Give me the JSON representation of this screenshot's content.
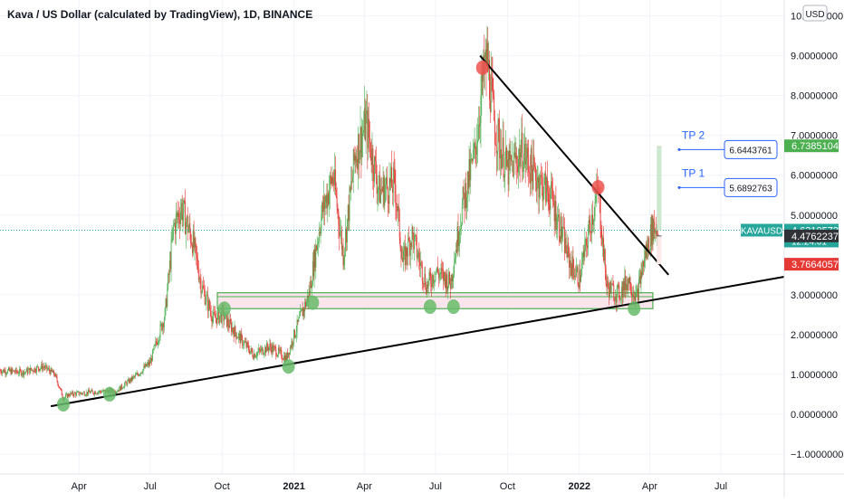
{
  "header": {
    "title": "Kava / US Dollar (calculated by TradingView), 1D, BINANCE",
    "currency": "USD"
  },
  "colors": {
    "up": "#26a69a",
    "down": "#ef5350",
    "candle_up": "#4caf50",
    "candle_down": "#e53935",
    "support_zone_stroke": "#4caf50",
    "support_zone_fill": "#fce4ec",
    "marker_green": "#66bb6a",
    "marker_red": "#ef5350",
    "trendline": "#000000",
    "tp_line": "#2962ff",
    "label_green": "#4caf50",
    "label_teal": "#26a69a",
    "label_dark": "#2f3236",
    "label_red": "#e53935",
    "target_box": "#c8e6c9"
  },
  "chart_data": {
    "type": "candlestick",
    "symbol": "KAVAUSD",
    "interval": "1D",
    "exchange": "BINANCE",
    "yaxis": {
      "ticks": [
        "10.0000000",
        "9.0000000",
        "8.0000000",
        "7.0000000",
        "6.0000000",
        "5.0000000",
        "3.0000000",
        "2.0000000",
        "1.0000000",
        "0.0000000",
        "−1.0000000"
      ],
      "tick_values": [
        10,
        9,
        8,
        7,
        6,
        5,
        3,
        2,
        1,
        0,
        -1
      ],
      "range": [
        -1.5,
        10.4
      ]
    },
    "xaxis": {
      "ticks": [
        "Apr",
        "Jul",
        "Oct",
        "2021",
        "Apr",
        "Jul",
        "Oct",
        "2022",
        "Apr",
        "Jul"
      ],
      "tick_dates": [
        "2020-04-01",
        "2020-07-01",
        "2020-10-01",
        "2021-01-01",
        "2021-04-01",
        "2021-07-01",
        "2021-10-01",
        "2022-01-01",
        "2022-04-01",
        "2022-07-01"
      ],
      "bold_ticks": [
        "2021",
        "2022"
      ],
      "range": [
        "2019-12-22",
        "2022-09-20"
      ]
    },
    "price_path": [
      [
        "2019-12-22",
        1.1
      ],
      [
        "2020-01-20",
        1.05
      ],
      [
        "2020-02-15",
        1.2
      ],
      [
        "2020-03-01",
        1.0
      ],
      [
        "2020-03-12",
        0.4
      ],
      [
        "2020-03-20",
        0.5
      ],
      [
        "2020-04-15",
        0.55
      ],
      [
        "2020-05-20",
        0.6
      ],
      [
        "2020-06-15",
        1.0
      ],
      [
        "2020-07-01",
        1.3
      ],
      [
        "2020-07-20",
        2.5
      ],
      [
        "2020-07-31",
        4.7
      ],
      [
        "2020-08-10",
        5.2
      ],
      [
        "2020-08-25",
        4.3
      ],
      [
        "2020-09-05",
        3.2
      ],
      [
        "2020-09-20",
        2.4
      ],
      [
        "2020-10-01",
        2.5
      ],
      [
        "2020-10-20",
        2.0
      ],
      [
        "2020-11-10",
        1.5
      ],
      [
        "2020-12-01",
        1.7
      ],
      [
        "2020-12-22",
        1.4
      ],
      [
        "2021-01-05",
        2.2
      ],
      [
        "2021-01-20",
        3.0
      ],
      [
        "2021-02-05",
        5.0
      ],
      [
        "2021-02-20",
        6.0
      ],
      [
        "2021-03-05",
        4.0
      ],
      [
        "2021-03-20",
        6.5
      ],
      [
        "2021-04-03",
        7.3
      ],
      [
        "2021-04-20",
        5.6
      ],
      [
        "2021-05-10",
        5.8
      ],
      [
        "2021-05-20",
        3.8
      ],
      [
        "2021-06-01",
        4.5
      ],
      [
        "2021-06-20",
        3.2
      ],
      [
        "2021-07-01",
        3.6
      ],
      [
        "2021-07-20",
        3.3
      ],
      [
        "2021-08-05",
        5.3
      ],
      [
        "2021-08-20",
        6.5
      ],
      [
        "2021-08-30",
        8.3
      ],
      [
        "2021-09-05",
        8.9
      ],
      [
        "2021-09-15",
        7.2
      ],
      [
        "2021-10-01",
        6.1
      ],
      [
        "2021-10-20",
        6.6
      ],
      [
        "2021-11-05",
        6.0
      ],
      [
        "2021-11-25",
        5.5
      ],
      [
        "2021-12-10",
        4.5
      ],
      [
        "2021-12-20",
        3.8
      ],
      [
        "2022-01-01",
        3.4
      ],
      [
        "2022-01-15",
        4.8
      ],
      [
        "2022-01-25",
        5.6
      ],
      [
        "2022-02-05",
        3.2
      ],
      [
        "2022-02-20",
        3.0
      ],
      [
        "2022-03-05",
        3.4
      ],
      [
        "2022-03-15",
        2.9
      ],
      [
        "2022-03-25",
        3.9
      ],
      [
        "2022-04-05",
        4.7
      ],
      [
        "2022-04-12",
        4.62
      ]
    ],
    "levels": {
      "last_price": {
        "label": "KAVAUSD",
        "value": 4.6210573,
        "text": "4.6210573",
        "countdown": "12:24:01"
      },
      "tp2": {
        "label": "TP 2",
        "value": 6.6443761,
        "text": "6.6443761"
      },
      "tp1": {
        "label": "TP 1",
        "value": 5.6892763,
        "text": "5.6892763"
      },
      "target_top": {
        "value": 6.7385104,
        "text": "6.7385104"
      },
      "entry": {
        "value": 4.4762237,
        "text": "4.4762237"
      },
      "stop": {
        "value": 3.7664057,
        "text": "3.7664057"
      }
    },
    "support_zone": {
      "from": "2020-09-25",
      "to": "2022-04-05",
      "low": 2.65,
      "high": 3.05
    },
    "trendlines": [
      {
        "name": "rising-support",
        "start": [
          "2020-02-25",
          0.2
        ],
        "end": [
          "2022-09-20",
          3.45
        ]
      },
      {
        "name": "falling-resistance",
        "start": [
          "2021-08-27",
          9.0
        ],
        "end": [
          "2022-04-25",
          3.5
        ]
      }
    ],
    "markers": [
      {
        "kind": "green",
        "date": "2020-03-12",
        "price": 0.25
      },
      {
        "kind": "green",
        "date": "2020-05-10",
        "price": 0.5
      },
      {
        "kind": "green",
        "date": "2020-10-04",
        "price": 2.65
      },
      {
        "kind": "green",
        "date": "2020-12-25",
        "price": 1.2
      },
      {
        "kind": "green",
        "date": "2021-01-25",
        "price": 2.8
      },
      {
        "kind": "green",
        "date": "2021-06-24",
        "price": 2.7
      },
      {
        "kind": "green",
        "date": "2021-07-24",
        "price": 2.7
      },
      {
        "kind": "green",
        "date": "2022-03-12",
        "price": 2.65
      },
      {
        "kind": "red",
        "date": "2021-08-30",
        "price": 8.7
      },
      {
        "kind": "red",
        "date": "2022-01-25",
        "price": 5.7
      }
    ],
    "target_box": {
      "from": "2022-04-10",
      "to": "2022-04-16",
      "low": 4.62,
      "high": 6.7385104
    }
  }
}
